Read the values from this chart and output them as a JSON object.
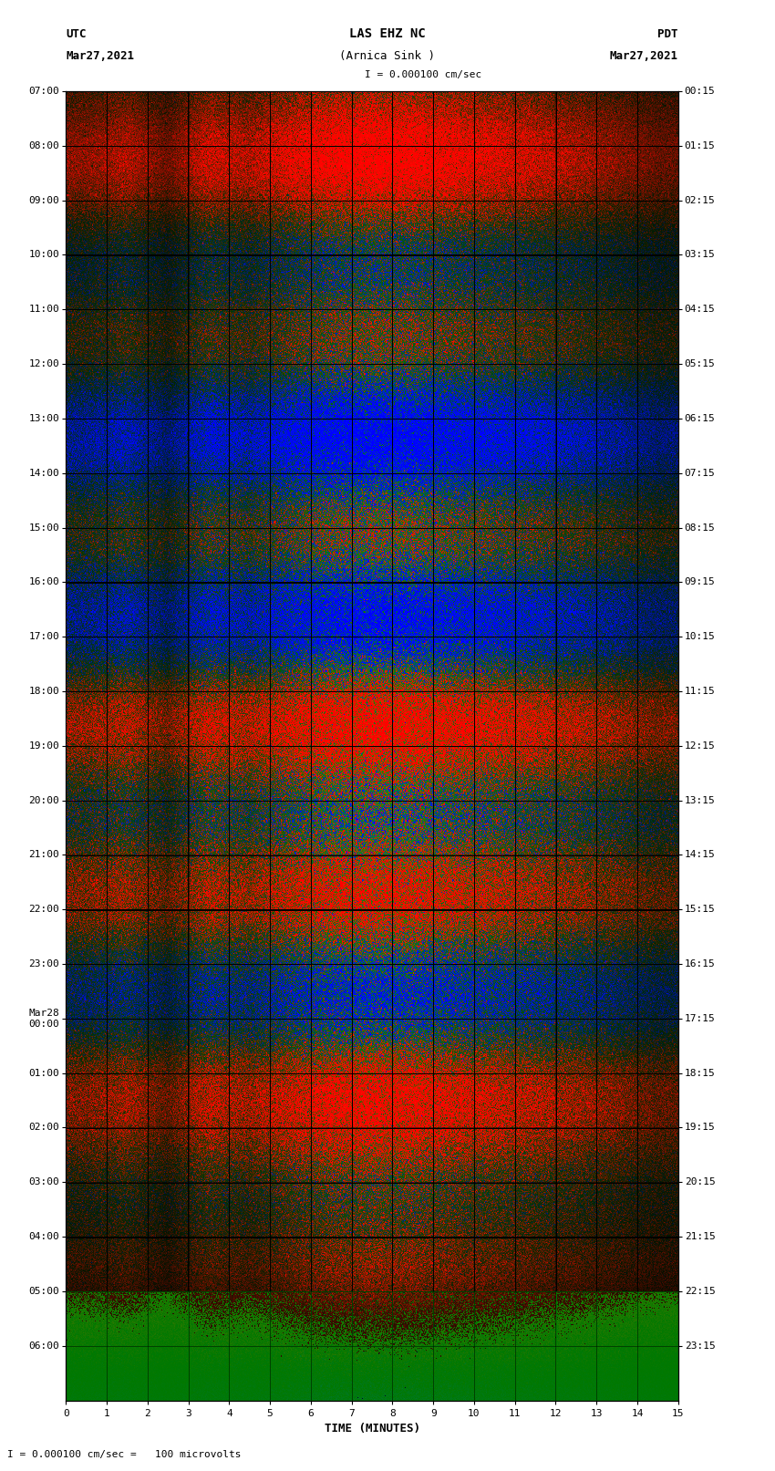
{
  "title_line1": "LAS EHZ NC",
  "title_line2": "(Arnica Sink )",
  "title_scale": "I = 0.000100 cm/sec",
  "left_label_top": "UTC",
  "left_label_date": "Mar27,2021",
  "right_label_top": "PDT",
  "right_label_date": "Mar27,2021",
  "bottom_label": "TIME (MINUTES)",
  "bottom_note": "I = 0.000100 cm/sec =   100 microvolts",
  "utc_ticks": [
    "07:00",
    "08:00",
    "09:00",
    "10:00",
    "11:00",
    "12:00",
    "13:00",
    "14:00",
    "15:00",
    "16:00",
    "17:00",
    "18:00",
    "19:00",
    "20:00",
    "21:00",
    "22:00",
    "23:00",
    "Mar28\n00:00",
    "01:00",
    "02:00",
    "03:00",
    "04:00",
    "05:00",
    "06:00"
  ],
  "pdt_ticks": [
    "00:15",
    "01:15",
    "02:15",
    "03:15",
    "04:15",
    "05:15",
    "06:15",
    "07:15",
    "08:15",
    "09:15",
    "10:15",
    "11:15",
    "12:15",
    "13:15",
    "14:15",
    "15:15",
    "16:15",
    "17:15",
    "18:15",
    "19:15",
    "20:15",
    "21:15",
    "22:15",
    "23:15"
  ],
  "x_ticks": [
    0,
    1,
    2,
    3,
    4,
    5,
    6,
    7,
    8,
    9,
    10,
    11,
    12,
    13,
    14,
    15
  ],
  "n_rows": 24,
  "n_cols": 15,
  "fig_bg": "#ffffff",
  "title_fontsize": 10,
  "tick_fontsize": 8,
  "label_fontsize": 9,
  "col_amplitudes": [
    0.4,
    0.5,
    0.3,
    0.6,
    0.5,
    0.7,
    0.9,
    1.0,
    0.95,
    0.8,
    0.7,
    0.6,
    0.5,
    0.4,
    0.3
  ],
  "row_amplitudes": [
    0.5,
    0.55,
    0.6,
    0.65,
    0.7,
    0.75,
    0.8,
    0.85,
    0.9,
    0.85,
    0.9,
    0.95,
    1.0,
    1.0,
    0.95,
    0.9,
    0.85,
    0.8,
    0.75,
    0.7,
    0.55,
    0.4,
    0.15,
    0.05
  ]
}
